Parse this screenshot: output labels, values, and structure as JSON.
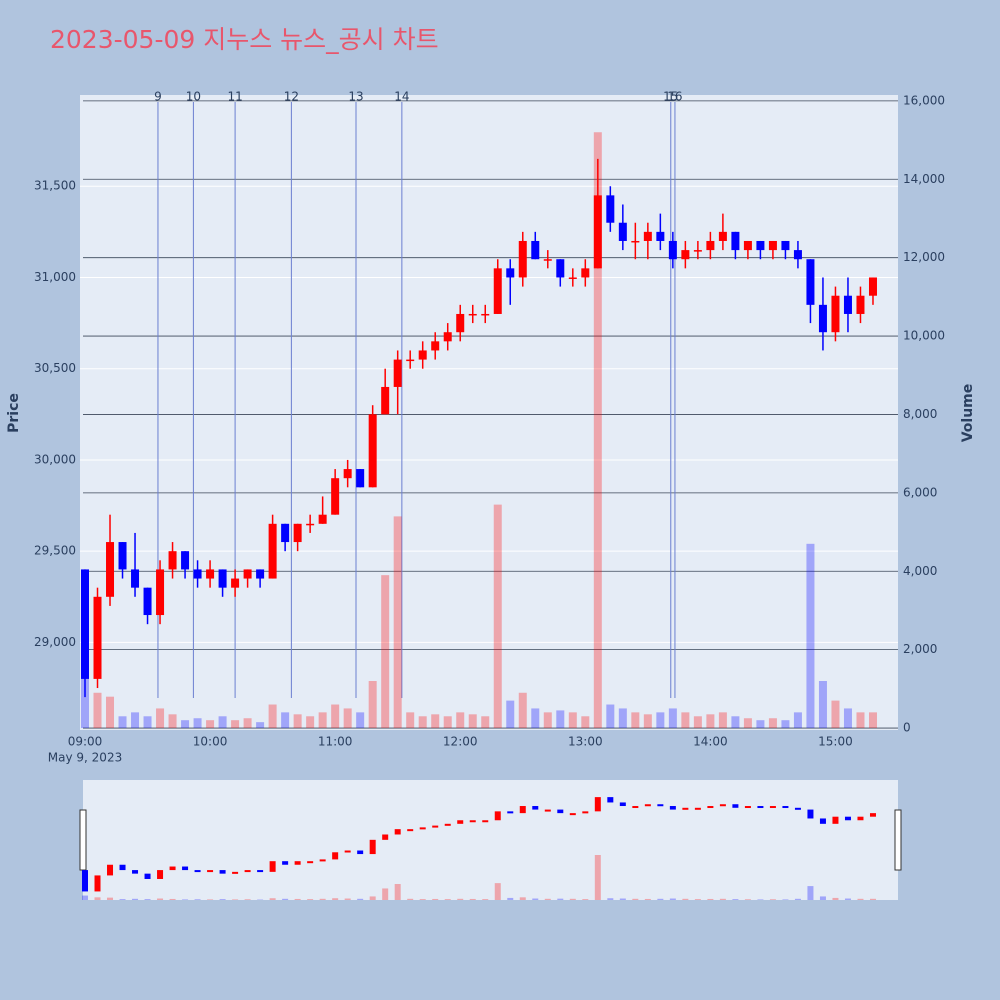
{
  "chart_data": {
    "type": "candlestick",
    "title": "2023-05-09 지누스 뉴스_공시 차트",
    "y_label": "Price",
    "y2_label": "Volume",
    "x_sublabel": "May 9, 2023",
    "xlim": [
      "09:00",
      "15:30"
    ],
    "xticks": [
      "09:00",
      "10:00",
      "11:00",
      "12:00",
      "13:00",
      "14:00",
      "15:00"
    ],
    "ylim": [
      28520,
      32000
    ],
    "yticks": [
      {
        "value": 29000,
        "label": "29,000"
      },
      {
        "value": 29500,
        "label": "29,500"
      },
      {
        "value": 30000,
        "label": "30,000"
      },
      {
        "value": 30500,
        "label": "30,500"
      },
      {
        "value": 31000,
        "label": "31,000"
      },
      {
        "value": 31500,
        "label": "31,500"
      }
    ],
    "y2lim": [
      -50,
      16150
    ],
    "y2ticks": [
      0,
      {
        "value": 2000,
        "label": "2,000"
      },
      {
        "value": 4000,
        "label": "4,000"
      },
      {
        "value": 6000,
        "label": "6,000"
      },
      {
        "value": 8000,
        "label": "8,000"
      },
      {
        "value": 10000,
        "label": "10,000"
      },
      {
        "value": 12000,
        "label": "12,000"
      },
      {
        "value": 14000,
        "label": "14,000"
      },
      {
        "value": 16000,
        "label": "16,000"
      }
    ],
    "up_color": "#ff0000",
    "down_color": "#0000ff",
    "news": [
      {
        "label": "9",
        "x": "09:35"
      },
      {
        "label": "10",
        "x": "09:52"
      },
      {
        "label": "11",
        "x": "10:12"
      },
      {
        "label": "12",
        "x": "10:39"
      },
      {
        "label": "13",
        "x": "11:10"
      },
      {
        "label": "14",
        "x": "11:32"
      },
      {
        "label": "15",
        "x": "13:41"
      },
      {
        "label": "16",
        "x": "13:43"
      }
    ],
    "x": [
      "09:00",
      "09:06",
      "09:12",
      "09:18",
      "09:24",
      "09:30",
      "09:36",
      "09:42",
      "09:48",
      "09:54",
      "10:00",
      "10:06",
      "10:12",
      "10:18",
      "10:24",
      "10:30",
      "10:36",
      "10:42",
      "10:48",
      "10:54",
      "11:00",
      "11:06",
      "11:12",
      "11:18",
      "11:24",
      "11:30",
      "11:36",
      "11:42",
      "11:48",
      "11:54",
      "12:00",
      "12:06",
      "12:12",
      "12:18",
      "12:24",
      "12:30",
      "12:36",
      "12:42",
      "12:48",
      "12:54",
      "13:00",
      "13:06",
      "13:12",
      "13:18",
      "13:24",
      "13:30",
      "13:36",
      "13:42",
      "13:48",
      "13:54",
      "14:00",
      "14:06",
      "14:12",
      "14:18",
      "14:24",
      "14:30",
      "14:36",
      "14:42",
      "14:48",
      "14:54",
      "15:00",
      "15:06",
      "15:12",
      "15:18"
    ],
    "open": [
      29400,
      28800,
      29250,
      29550,
      29400,
      29300,
      29150,
      29400,
      29500,
      29400,
      29350,
      29400,
      29300,
      29350,
      29400,
      29350,
      29650,
      29550,
      29650,
      29650,
      29700,
      29900,
      29950,
      29850,
      30250,
      30400,
      30550,
      30550,
      30600,
      30650,
      30700,
      30800,
      30800,
      30800,
      31050,
      31000,
      31200,
      31100,
      31100,
      31000,
      31000,
      31050,
      31450,
      31300,
      31200,
      31200,
      31250,
      31200,
      31100,
      31150,
      31150,
      31200,
      31250,
      31150,
      31200,
      31150,
      31200,
      31150,
      31100,
      30850,
      30700,
      30900,
      30800,
      30900
    ],
    "high": [
      29400,
      29300,
      29700,
      29550,
      29600,
      29300,
      29450,
      29550,
      29500,
      29450,
      29450,
      29400,
      29400,
      29400,
      29400,
      29700,
      29650,
      29650,
      29700,
      29800,
      29950,
      30000,
      29950,
      30300,
      30500,
      30600,
      30600,
      30650,
      30700,
      30750,
      30850,
      30850,
      30850,
      31100,
      31100,
      31250,
      31250,
      31150,
      31100,
      31050,
      31100,
      31650,
      31500,
      31400,
      31300,
      31300,
      31350,
      31250,
      31200,
      31200,
      31250,
      31350,
      31250,
      31200,
      31200,
      31200,
      31200,
      31200,
      31100,
      31000,
      30950,
      31000,
      30950,
      31000
    ],
    "low": [
      28700,
      28750,
      29200,
      29350,
      29250,
      29100,
      29100,
      29350,
      29350,
      29300,
      29300,
      29250,
      29250,
      29300,
      29300,
      29350,
      29500,
      29500,
      29600,
      29650,
      29700,
      29850,
      29850,
      29850,
      30250,
      30250,
      30500,
      30500,
      30550,
      30600,
      30650,
      30750,
      30750,
      30800,
      30850,
      30950,
      31100,
      31050,
      30950,
      30950,
      30950,
      31050,
      31250,
      31150,
      31100,
      31100,
      31150,
      31050,
      31050,
      31100,
      31100,
      31150,
      31100,
      31100,
      31100,
      31100,
      31100,
      31050,
      30750,
      30600,
      30650,
      30700,
      30750,
      30850
    ],
    "close": [
      28800,
      29250,
      29550,
      29400,
      29300,
      29150,
      29400,
      29500,
      29400,
      29350,
      29400,
      29300,
      29350,
      29400,
      29350,
      29650,
      29550,
      29650,
      29650,
      29700,
      29900,
      29950,
      29850,
      30250,
      30400,
      30550,
      30550,
      30600,
      30650,
      30700,
      30800,
      30800,
      30800,
      31050,
      31000,
      31200,
      31100,
      31100,
      31000,
      31000,
      31050,
      31450,
      31300,
      31200,
      31200,
      31250,
      31200,
      31100,
      31150,
      31150,
      31200,
      31250,
      31150,
      31200,
      31150,
      31200,
      31150,
      31100,
      30850,
      30700,
      30900,
      30800,
      30900,
      31000
    ],
    "volume": [
      1500,
      900,
      800,
      300,
      400,
      300,
      500,
      350,
      200,
      250,
      200,
      300,
      200,
      250,
      150,
      600,
      400,
      350,
      300,
      400,
      600,
      500,
      400,
      1200,
      3900,
      5400,
      400,
      300,
      350,
      300,
      400,
      350,
      300,
      5700,
      700,
      900,
      500,
      400,
      450,
      400,
      300,
      15200,
      600,
      500,
      400,
      350,
      400,
      500,
      400,
      300,
      350,
      400,
      300,
      250,
      200,
      250,
      200,
      400,
      4700,
      1200,
      700,
      500,
      400,
      400
    ]
  }
}
